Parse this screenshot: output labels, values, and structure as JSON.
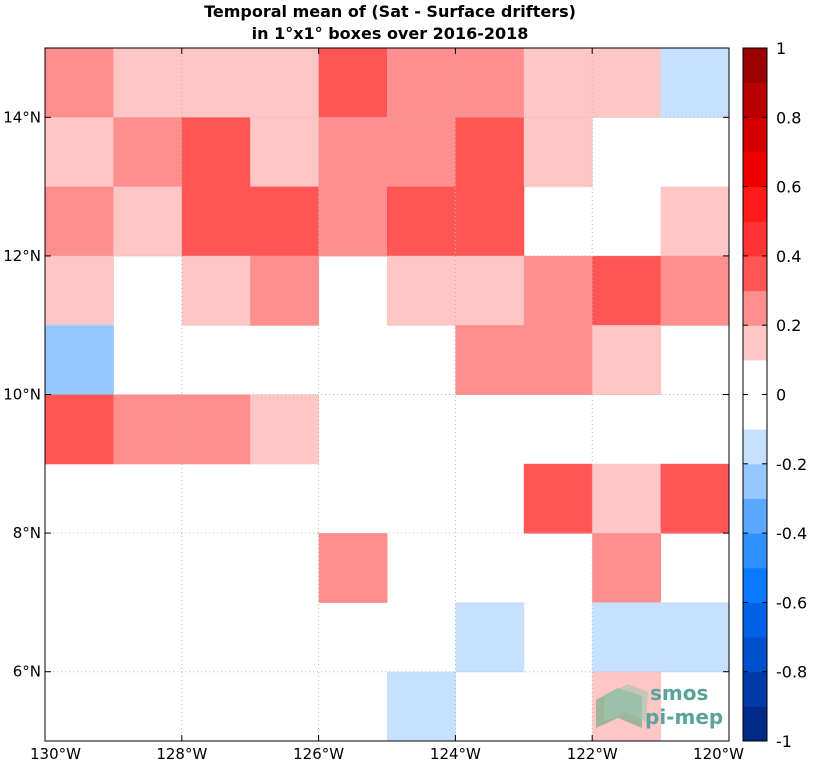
{
  "chart_data": {
    "type": "heatmap",
    "title": [
      "Temporal mean of (Sat - Surface drifters)",
      "in 1°x1° boxes over 2016-2018"
    ],
    "xlim": [
      -130,
      -120
    ],
    "ylim": [
      5,
      15
    ],
    "x_ticks": [
      {
        "value": -130,
        "label": "130°W"
      },
      {
        "value": -128,
        "label": "128°W"
      },
      {
        "value": -126,
        "label": "126°W"
      },
      {
        "value": -124,
        "label": "124°W"
      },
      {
        "value": -122,
        "label": "122°W"
      },
      {
        "value": -120,
        "label": "120°W"
      }
    ],
    "y_ticks": [
      {
        "value": 6,
        "label": "6°N"
      },
      {
        "value": 8,
        "label": "8°N"
      },
      {
        "value": 10,
        "label": "10°N"
      },
      {
        "value": 12,
        "label": "12°N"
      },
      {
        "value": 14,
        "label": "14°N"
      }
    ],
    "grid": true,
    "colorbar": {
      "range": [
        -1,
        1
      ],
      "step": 0.1,
      "ticks": [
        "1",
        "0.8",
        "0.6",
        "0.4",
        "0.2",
        "0",
        "-0.2",
        "-0.4",
        "-0.6",
        "-0.8",
        "-1"
      ],
      "colors": [
        "#ffffff",
        "#ffc6c6",
        "#ff8e8e",
        "#ff5555",
        "#ff3333",
        "#ff1a1a",
        "#ee0000",
        "#d40000",
        "#b80000",
        "#9a0000",
        "#7a0000"
      ],
      "neg_colors": [
        "#ffffff",
        "#c6e0ff",
        "#95c8ff",
        "#5aa8ff",
        "#2f90ff",
        "#0a78ff",
        "#0060e6",
        "#004fcc",
        "#003aa8",
        "#002a88",
        "#000c78"
      ]
    },
    "cells": [
      {
        "lon": -130,
        "lat": 14,
        "value": 0.25
      },
      {
        "lon": -129,
        "lat": 14,
        "value": 0.15
      },
      {
        "lon": -128,
        "lat": 14,
        "value": 0.15
      },
      {
        "lon": -127,
        "lat": 14,
        "value": 0.15
      },
      {
        "lon": -126,
        "lat": 14,
        "value": 0.35
      },
      {
        "lon": -125,
        "lat": 14,
        "value": 0.25
      },
      {
        "lon": -124,
        "lat": 14,
        "value": 0.25
      },
      {
        "lon": -123,
        "lat": 14,
        "value": 0.15
      },
      {
        "lon": -122,
        "lat": 14,
        "value": 0.15
      },
      {
        "lon": -121,
        "lat": 14,
        "value": -0.15
      },
      {
        "lon": -130,
        "lat": 13,
        "value": 0.15
      },
      {
        "lon": -129,
        "lat": 13,
        "value": 0.25
      },
      {
        "lon": -128,
        "lat": 13,
        "value": 0.35
      },
      {
        "lon": -127,
        "lat": 13,
        "value": 0.15
      },
      {
        "lon": -126,
        "lat": 13,
        "value": 0.25
      },
      {
        "lon": -125,
        "lat": 13,
        "value": 0.25
      },
      {
        "lon": -124,
        "lat": 13,
        "value": 0.35
      },
      {
        "lon": -123,
        "lat": 13,
        "value": 0.15
      },
      {
        "lon": -130,
        "lat": 12,
        "value": 0.25
      },
      {
        "lon": -129,
        "lat": 12,
        "value": 0.15
      },
      {
        "lon": -128,
        "lat": 12,
        "value": 0.35
      },
      {
        "lon": -127,
        "lat": 12,
        "value": 0.35
      },
      {
        "lon": -126,
        "lat": 12,
        "value": 0.25
      },
      {
        "lon": -125,
        "lat": 12,
        "value": 0.35
      },
      {
        "lon": -124,
        "lat": 12,
        "value": 0.35
      },
      {
        "lon": -121,
        "lat": 12,
        "value": 0.15
      },
      {
        "lon": -130,
        "lat": 11,
        "value": 0.15
      },
      {
        "lon": -128,
        "lat": 11,
        "value": 0.15
      },
      {
        "lon": -127,
        "lat": 11,
        "value": 0.25
      },
      {
        "lon": -125,
        "lat": 11,
        "value": 0.15
      },
      {
        "lon": -124,
        "lat": 11,
        "value": 0.15
      },
      {
        "lon": -123,
        "lat": 11,
        "value": 0.25
      },
      {
        "lon": -122,
        "lat": 11,
        "value": 0.35
      },
      {
        "lon": -121,
        "lat": 11,
        "value": 0.25
      },
      {
        "lon": -130,
        "lat": 10,
        "value": -0.25
      },
      {
        "lon": -124,
        "lat": 10,
        "value": 0.25
      },
      {
        "lon": -123,
        "lat": 10,
        "value": 0.25
      },
      {
        "lon": -122,
        "lat": 10,
        "value": 0.15
      },
      {
        "lon": -130,
        "lat": 9,
        "value": 0.35
      },
      {
        "lon": -129,
        "lat": 9,
        "value": 0.25
      },
      {
        "lon": -128,
        "lat": 9,
        "value": 0.25
      },
      {
        "lon": -127,
        "lat": 9,
        "value": 0.15
      },
      {
        "lon": -123,
        "lat": 8,
        "value": 0.35
      },
      {
        "lon": -122,
        "lat": 8,
        "value": 0.15
      },
      {
        "lon": -121,
        "lat": 8,
        "value": 0.35
      },
      {
        "lon": -126,
        "lat": 7,
        "value": 0.25
      },
      {
        "lon": -122,
        "lat": 7,
        "value": 0.25
      },
      {
        "lon": -124,
        "lat": 6,
        "value": -0.15
      },
      {
        "lon": -122,
        "lat": 6,
        "value": -0.15
      },
      {
        "lon": -121,
        "lat": 6,
        "value": -0.15
      },
      {
        "lon": -125,
        "lat": 5,
        "value": -0.15
      },
      {
        "lon": -122,
        "lat": 5,
        "value": 0.15
      }
    ]
  },
  "logo": {
    "line1": "smos",
    "line2": "pi-mep"
  }
}
